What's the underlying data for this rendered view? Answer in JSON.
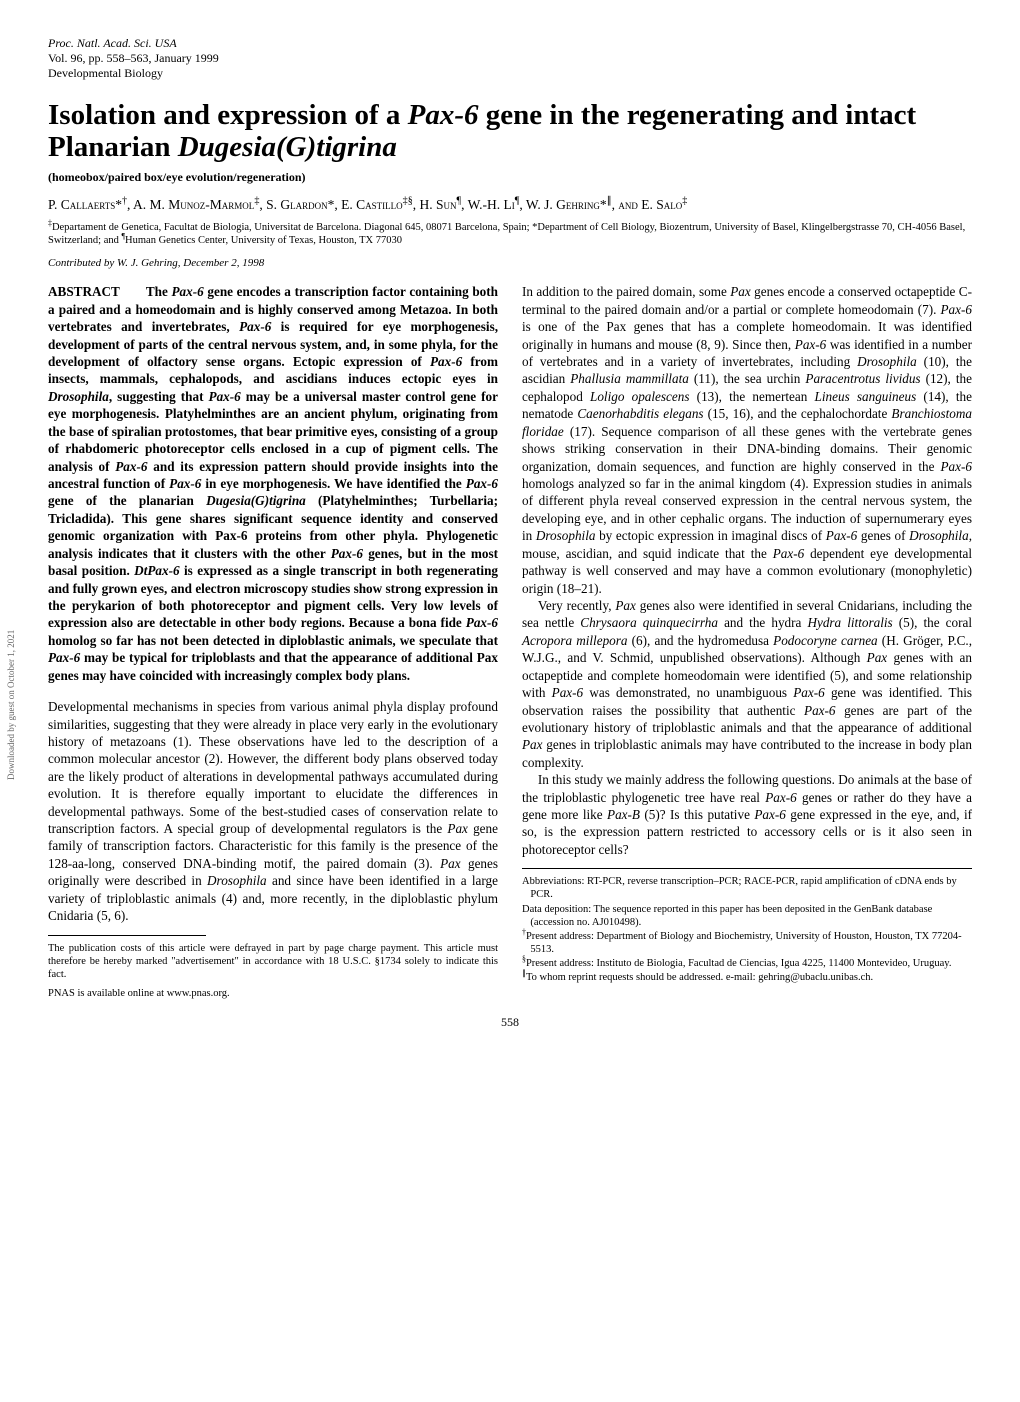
{
  "journal": {
    "name": "Proc. Natl. Acad. Sci. USA",
    "volume_pages": "Vol. 96, pp. 558–563, January 1999",
    "section": "Developmental Biology"
  },
  "title": {
    "prefix": "Isolation and expression of a ",
    "gene": "Pax-6",
    "middle": " gene in the regenerating and intact Planarian ",
    "species": "Dugesia(G)tigrina"
  },
  "keywords": "(homeobox/paired box/eye evolution/regeneration)",
  "authors_html": "P. Callaerts*<sup>†</sup>, A. M. Munoz-Marmol<sup>‡</sup>, S. Glardon*, E. Castillo<sup>‡§</sup>, H. Sun<sup>¶</sup>, W.-H. Li<sup>¶</sup>, W. J. Gehring*<sup>∥</sup>, and E. Salo<sup>‡</sup>",
  "affiliations_html": "<sup>‡</sup>Departament de Genetica, Facultat de Biologia, Universitat de Barcelona. Diagonal 645, 08071 Barcelona, Spain; *Department of Cell Biology, Biozentrum, University of Basel, Klingelbergstrasse 70, CH-4056 Basel, Switzerland; and <sup>¶</sup>Human Genetics Center, University of Texas, Houston, TX 77030",
  "contributed": "Contributed by W. J. Gehring, December 2, 1998",
  "abstract": {
    "label": "ABSTRACT",
    "text_html": "The <i>Pax-6</i> gene encodes a transcription factor containing both a paired and a homeodomain and is highly conserved among Metazoa. In both vertebrates and invertebrates, <i>Pax-6</i> is required for eye morphogenesis, development of parts of the central nervous system, and, in some phyla, for the development of olfactory sense organs. Ectopic expression of <i>Pax-6</i> from insects, mammals, cephalopods, and ascidians induces ectopic eyes in <i>Drosophila</i>, suggesting that <i>Pax-6</i> may be a universal master control gene for eye morphogenesis. Platyhelminthes are an ancient phylum, originating from the base of spiralian protostomes, that bear primitive eyes, consisting of a group of rhabdomeric photoreceptor cells enclosed in a cup of pigment cells. The analysis of <i>Pax-6</i> and its expression pattern should provide insights into the ancestral function of <i>Pax-6</i> in eye morphogenesis. We have identified the <i>Pax-6</i> gene of the planarian <i>Dugesia(G)tigrina</i> (Platyhelminthes; Turbellaria; Tricladida). This gene shares significant sequence identity and conserved genomic organization with Pax-6 proteins from other phyla. Phylogenetic analysis indicates that it clusters with the other <i>Pax-6</i> genes, but in the most basal position. <i>DtPax-6</i> is expressed as a single transcript in both regenerating and fully grown eyes, and electron microscopy studies show strong expression in the perykarion of both photoreceptor and pigment cells. Very low levels of expression also are detectable in other body regions. Because a bona fide <i>Pax-6</i> homolog so far has not been detected in diploblastic animals, we speculate that <i>Pax-6</i> may be typical for triploblasts and that the appearance of additional Pax genes may have coincided with increasingly complex body plans."
  },
  "left_body": {
    "p1_html": "Developmental mechanisms in species from various animal phyla display profound similarities, suggesting that they were already in place very early in the evolutionary history of metazoans (1). These observations have led to the description of a common molecular ancestor (2). However, the different body plans observed today are the likely product of alterations in developmental pathways accumulated during evolution. It is therefore equally important to elucidate the differences in developmental pathways. Some of the best-studied cases of conservation relate to transcription factors. A special group of developmental regulators is the <i>Pax</i> gene family of transcription factors. Characteristic for this family is the presence of the 128-aa-long, conserved DNA-binding motif, the paired domain (3). <i>Pax</i> genes originally were described in <i>Drosophila</i> and since have been identified in a large variety of triploblastic animals (4) and, more recently, in the diploblastic phylum Cnidaria (5, 6)."
  },
  "pubcosts": "The publication costs of this article were defrayed in part by page charge payment. This article must therefore be hereby marked \"advertisement\" in accordance with 18 U.S.C. §1734 solely to indicate this fact.",
  "pnas_online": "PNAS is available online at www.pnas.org.",
  "right_body": {
    "p1_html": "In addition to the paired domain, some <i>Pax</i> genes encode a conserved octapeptide C-terminal to the paired domain and/or a partial or complete homeodomain (7). <i>Pax-6</i> is one of the Pax genes that has a complete homeodomain. It was identified originally in humans and mouse (8, 9). Since then, <i>Pax-6</i> was identified in a number of vertebrates and in a variety of invertebrates, including <i>Drosophila</i> (10), the ascidian <i>Phallusia mammillata</i> (11), the sea urchin <i>Paracentrotus lividus</i> (12), the cephalopod <i>Loligo opalescens</i> (13), the nemertean <i>Lineus sanguineus</i> (14), the nematode <i>Caenorhabditis elegans</i> (15, 16), and the cephalochordate <i>Branchiostoma floridae</i> (17). Sequence comparison of all these genes with the vertebrate genes shows striking conservation in their DNA-binding domains. Their genomic organization, domain sequences, and function are highly conserved in the <i>Pax-6</i> homologs analyzed so far in the animal kingdom (4). Expression studies in animals of different phyla reveal conserved expression in the central nervous system, the developing eye, and in other cephalic organs. The induction of supernumerary eyes in <i>Drosophila</i> by ectopic expression in imaginal discs of <i>Pax-6</i> genes of <i>Drosophila</i>, mouse, ascidian, and squid indicate that the <i>Pax-6</i> dependent eye developmental pathway is well conserved and may have a common evolutionary (monophyletic) origin (18–21).",
    "p2_html": "Very recently, <i>Pax</i> genes also were identified in several Cnidarians, including the sea nettle <i>Chrysaora quinquecirrha</i> and the hydra <i>Hydra littoralis</i> (5), the coral <i>Acropora millepora</i> (6), and the hydromedusa <i>Podocoryne carnea</i> (H. Gröger, P.C., W.J.G., and V. Schmid, unpublished observations). Although <i>Pax</i> genes with an octapeptide and complete homeodomain were identified (5), and some relationship with <i>Pax-6</i> was demonstrated, no unambiguous <i>Pax-6</i> gene was identified. This observation raises the possibility that authentic <i>Pax-6</i> genes are part of the evolutionary history of triploblastic animals and that the appearance of additional <i>Pax</i> genes in triploblastic animals may have contributed to the increase in body plan complexity.",
    "p3_html": "In this study we mainly address the following questions. Do animals at the base of the triploblastic phylogenetic tree have real <i>Pax-6</i> genes or rather do they have a gene more like <i>Pax-B</i> (5)? Is this putative <i>Pax-6</i> gene expressed in the eye, and, if so, is the expression pattern restricted to accessory cells or is it also seen in photoreceptor cells?"
  },
  "footnotes": {
    "f1": "Abbreviations: RT-PCR, reverse transcription–PCR; RACE-PCR, rapid amplification of cDNA ends by PCR.",
    "f2": "Data deposition: The sequence reported in this paper has been deposited in the GenBank database (accession no. AJ010498).",
    "f3_html": "<sup>†</sup>Present address: Department of Biology and Biochemistry, University of Houston, Houston, TX 77204-5513.",
    "f4_html": "<sup>§</sup>Present address: Instituto de Biologia, Facultad de Ciencias, Igua 4225, 11400 Montevideo, Uruguay.",
    "f5_html": "<sup>∥</sup>To whom reprint requests should be addressed. e-mail: gehring@ubaclu.unibas.ch."
  },
  "page_number": "558",
  "side_tag": "Downloaded by guest on October 1, 2021"
}
